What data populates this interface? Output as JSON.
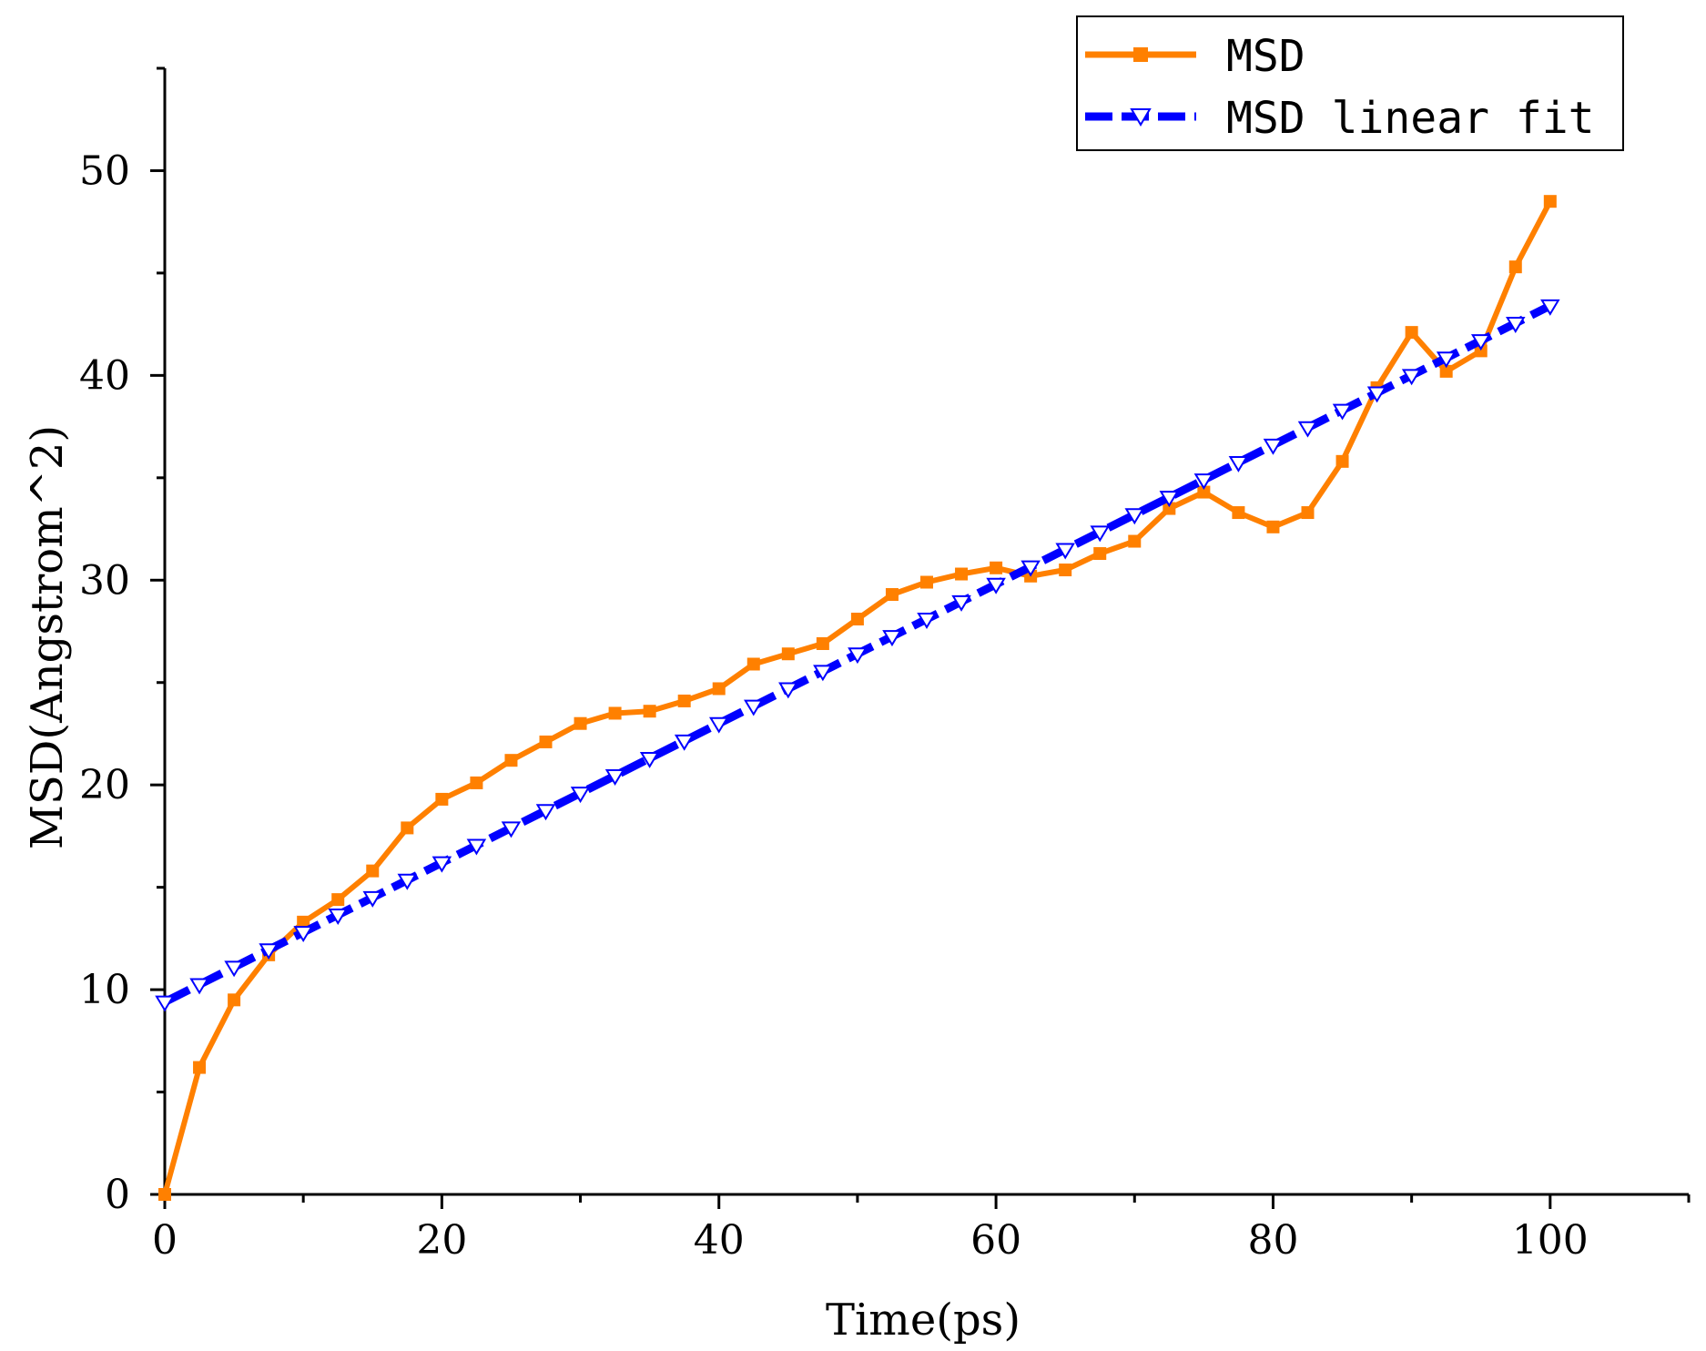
{
  "chart_data": {
    "type": "line",
    "title": "",
    "xlabel": "Time(ps)",
    "ylabel": "MSD(Angstrom^2)",
    "xlim": [
      0,
      110
    ],
    "ylim": [
      0,
      55
    ],
    "xticks": [
      0,
      20,
      40,
      60,
      80,
      100
    ],
    "xtick_labels": [
      "0",
      "20",
      "40",
      "60",
      "80",
      "100"
    ],
    "yticks": [
      0,
      10,
      20,
      30,
      40,
      50
    ],
    "ytick_labels": [
      "0",
      "10",
      "20",
      "30",
      "40",
      "50"
    ],
    "x_minor_step": 10,
    "y_minor_step": 5,
    "grid": false,
    "legend_position": "top-right",
    "series": [
      {
        "name": "MSD",
        "color": "#ff8000",
        "marker": "square",
        "line_style": "solid",
        "x": [
          0,
          2.5,
          5,
          7.5,
          10,
          12.5,
          15,
          17.5,
          20,
          22.5,
          25,
          27.5,
          30,
          32.5,
          35,
          37.5,
          40,
          42.5,
          45,
          47.5,
          50,
          52.5,
          55,
          57.5,
          60,
          62.5,
          65,
          67.5,
          70,
          72.5,
          75,
          77.5,
          80,
          82.5,
          85,
          87.5,
          90,
          92.5,
          95,
          97.5,
          100
        ],
        "values": [
          0,
          6.2,
          9.5,
          11.7,
          13.3,
          14.4,
          15.8,
          17.9,
          19.3,
          20.1,
          21.2,
          22.1,
          23.0,
          23.5,
          23.6,
          24.1,
          24.7,
          25.9,
          26.4,
          26.9,
          28.1,
          29.3,
          29.9,
          30.3,
          30.6,
          30.2,
          30.5,
          31.3,
          31.9,
          33.5,
          34.3,
          33.3,
          32.6,
          33.3,
          35.8,
          39.4,
          42.1,
          40.2,
          41.2,
          45.3,
          48.5
        ]
      },
      {
        "name": "MSD linear fit",
        "color": "#0000ff",
        "marker": "triangle-down",
        "line_style": "dashed",
        "x": [
          0,
          2.5,
          5,
          7.5,
          10,
          12.5,
          15,
          17.5,
          20,
          22.5,
          25,
          27.5,
          30,
          32.5,
          35,
          37.5,
          40,
          42.5,
          45,
          47.5,
          50,
          52.5,
          55,
          57.5,
          60,
          62.5,
          65,
          67.5,
          70,
          72.5,
          75,
          77.5,
          80,
          82.5,
          85,
          87.5,
          90,
          92.5,
          95,
          97.5,
          100
        ],
        "values": [
          9.4,
          10.25,
          11.1,
          11.95,
          12.8,
          13.65,
          14.5,
          15.35,
          16.2,
          17.05,
          17.9,
          18.75,
          19.6,
          20.45,
          21.3,
          22.15,
          23.0,
          23.85,
          24.7,
          25.55,
          26.4,
          27.25,
          28.1,
          28.95,
          29.8,
          30.65,
          31.5,
          32.35,
          33.2,
          34.05,
          34.9,
          35.75,
          36.6,
          37.45,
          38.3,
          39.15,
          40.0,
          40.85,
          41.7,
          42.55,
          43.4
        ]
      }
    ]
  }
}
